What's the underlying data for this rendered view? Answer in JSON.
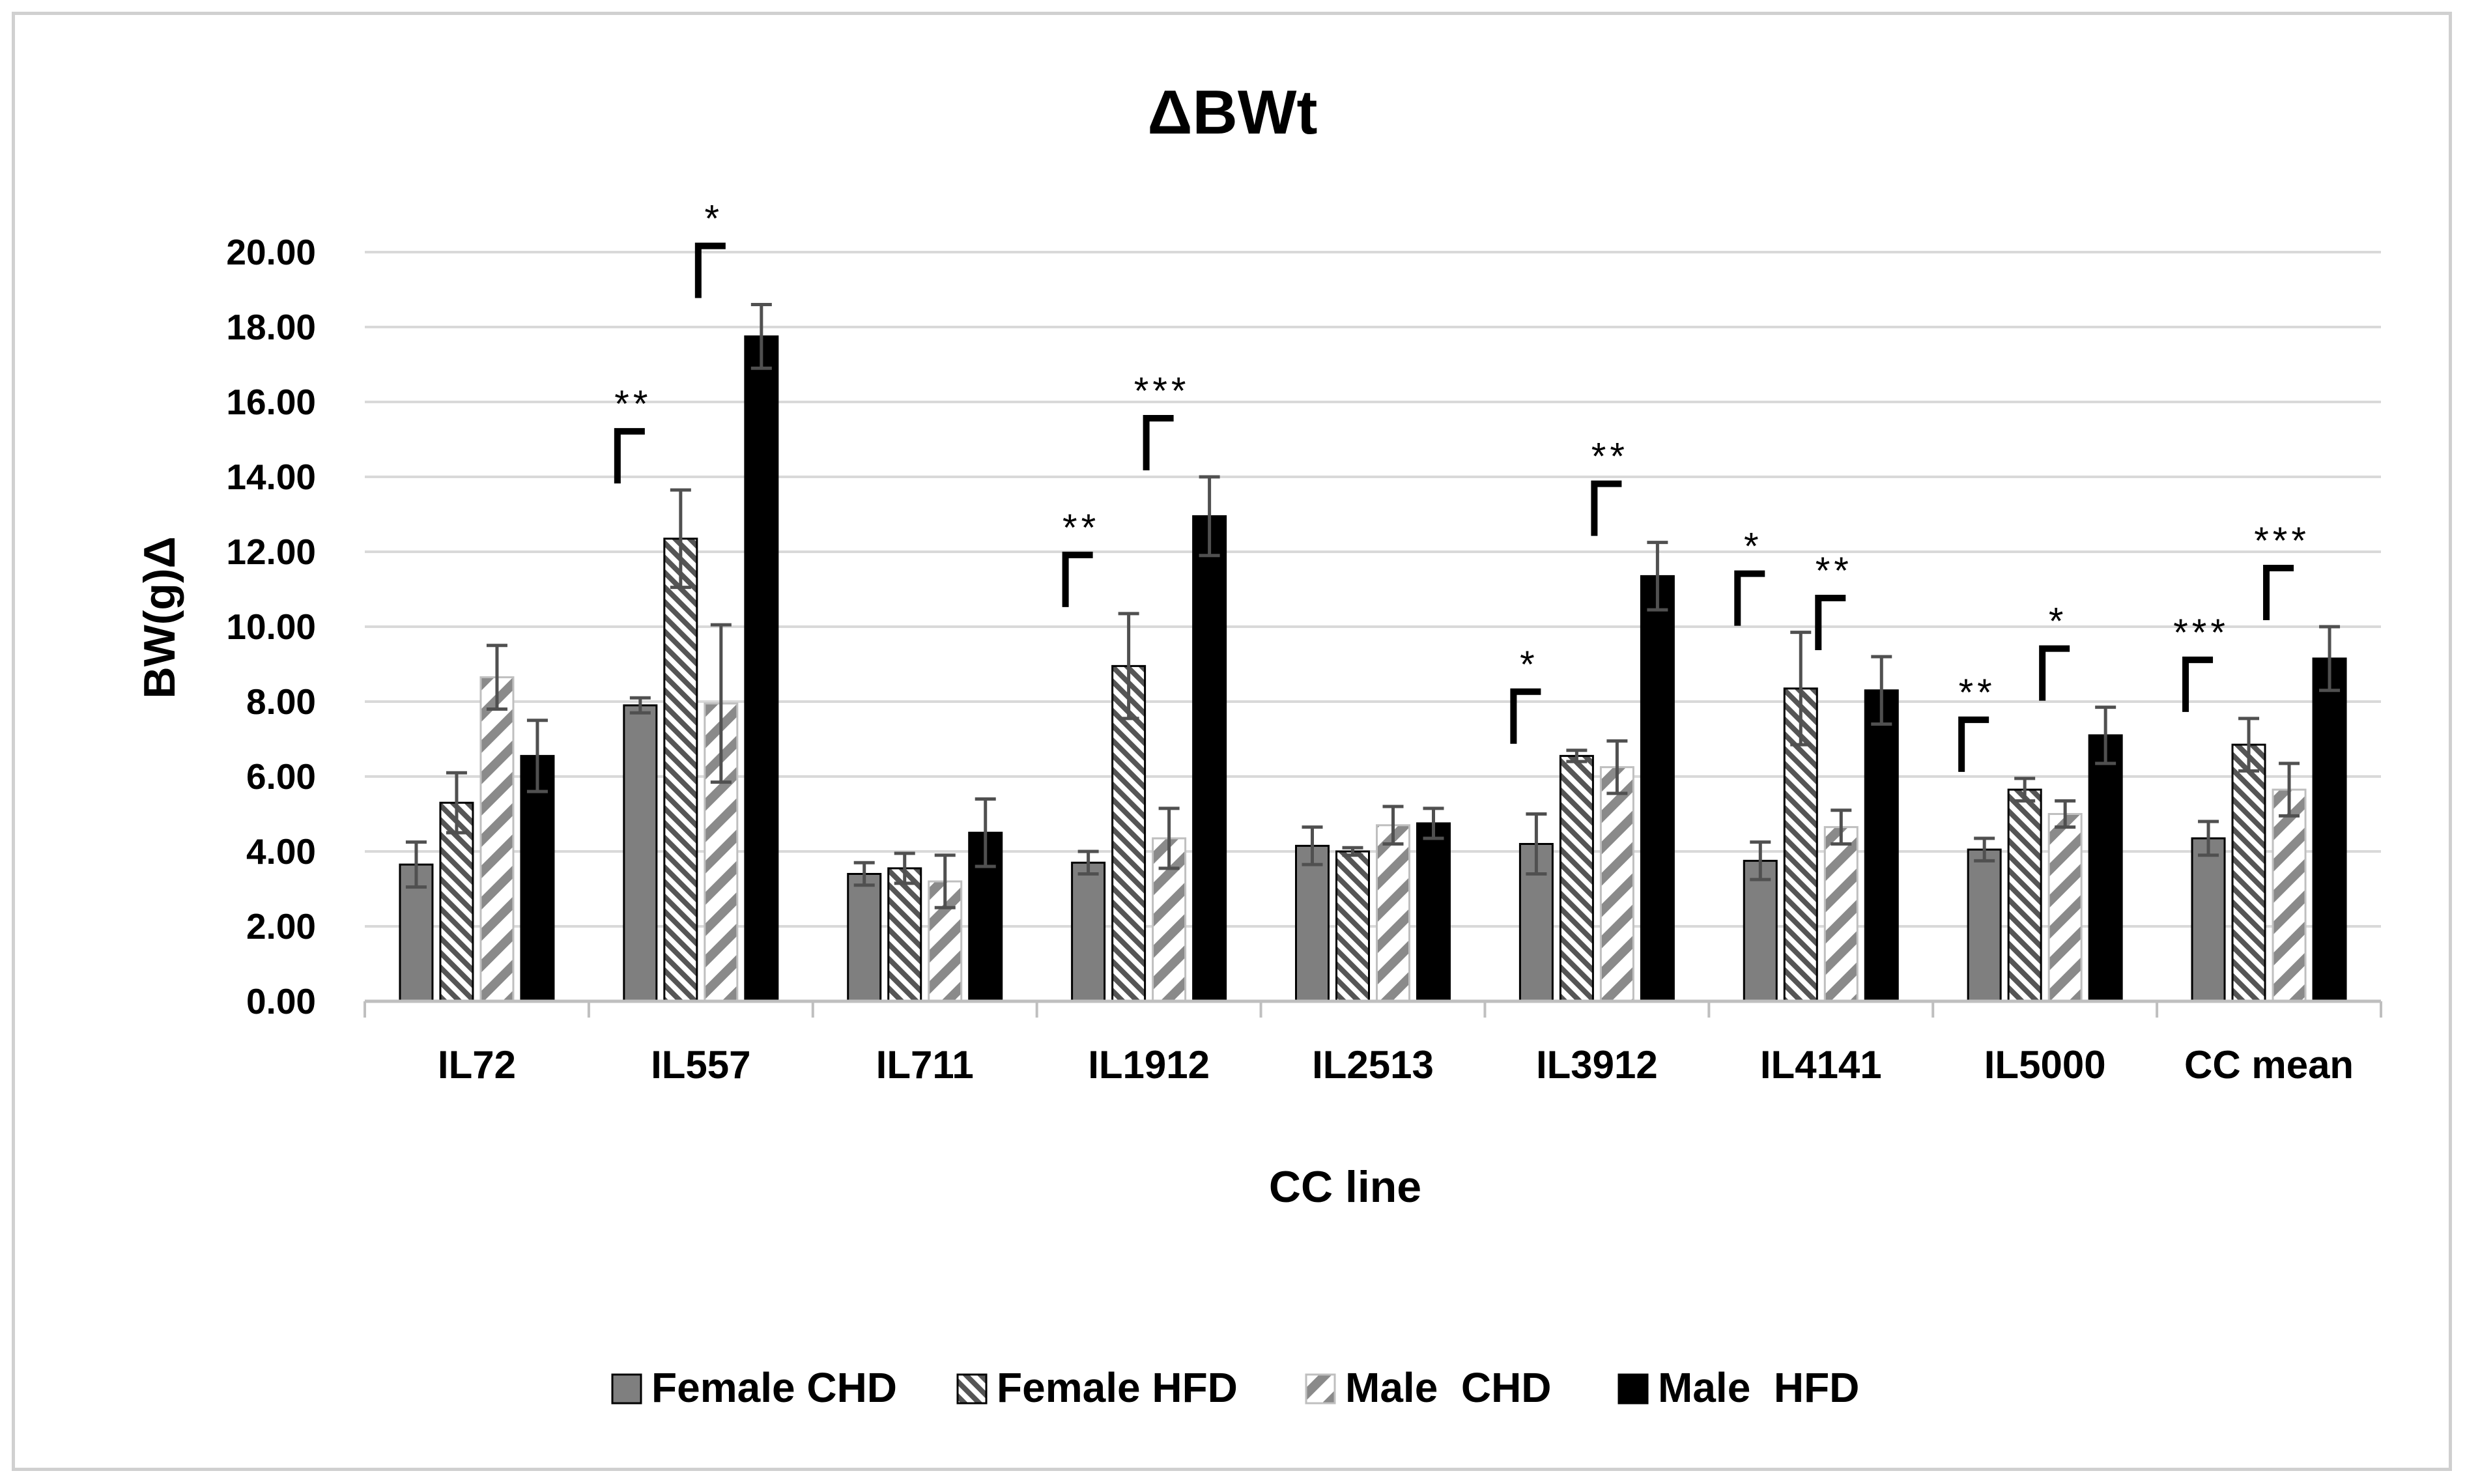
{
  "chart_data": {
    "type": "bar",
    "title": "ΔBWt",
    "xlabel": "CC line",
    "ylabel": "BW(g)Δ",
    "ylim": [
      0,
      20
    ],
    "yticks": [
      "0.00",
      "2.00",
      "4.00",
      "6.00",
      "8.00",
      "10.00",
      "12.00",
      "14.00",
      "16.00",
      "18.00",
      "20.00"
    ],
    "grid": true,
    "legend_position": "bottom",
    "categories": [
      "IL72",
      "IL557",
      "IL711",
      "IL1912",
      "IL2513",
      "IL3912",
      "IL4141",
      "IL5000",
      "CC mean"
    ],
    "series": [
      {
        "name": "Female CHD",
        "color": "#7f7f7f",
        "pattern": "solid-gray",
        "values": [
          3.65,
          7.9,
          3.4,
          3.7,
          4.15,
          4.2,
          3.75,
          4.05,
          4.35
        ],
        "errors": [
          0.6,
          0.2,
          0.3,
          0.3,
          0.5,
          0.8,
          0.5,
          0.3,
          0.45
        ]
      },
      {
        "name": "Female HFD",
        "color": "#595959",
        "pattern": "diagonal-dense",
        "values": [
          5.3,
          12.35,
          3.55,
          8.95,
          4.0,
          6.55,
          8.35,
          5.65,
          6.85
        ],
        "errors": [
          0.8,
          1.3,
          0.4,
          1.4,
          0.1,
          0.15,
          1.5,
          0.3,
          0.7
        ]
      },
      {
        "name": "Male  CHD",
        "color": "#808080",
        "pattern": "diagonal-wide",
        "values": [
          8.65,
          7.95,
          3.2,
          4.35,
          4.7,
          6.25,
          4.65,
          5.0,
          5.65
        ],
        "errors": [
          0.85,
          2.1,
          0.7,
          0.8,
          0.5,
          0.7,
          0.45,
          0.35,
          0.7
        ]
      },
      {
        "name": "Male  HFD",
        "color": "#000000",
        "pattern": "solid-black",
        "values": [
          6.55,
          17.75,
          4.5,
          12.95,
          4.75,
          11.35,
          8.3,
          7.1,
          9.15
        ],
        "errors": [
          0.95,
          0.85,
          0.9,
          1.05,
          0.4,
          0.9,
          0.9,
          0.75,
          0.85
        ]
      }
    ],
    "annotations": [
      {
        "category": "IL557",
        "pair": "female",
        "text": "**"
      },
      {
        "category": "IL557",
        "pair": "male",
        "text": "*"
      },
      {
        "category": "IL1912",
        "pair": "female",
        "text": "**"
      },
      {
        "category": "IL1912",
        "pair": "male",
        "text": "***"
      },
      {
        "category": "IL3912",
        "pair": "female",
        "text": "*"
      },
      {
        "category": "IL3912",
        "pair": "male",
        "text": "**"
      },
      {
        "category": "IL4141",
        "pair": "female",
        "text": "*"
      },
      {
        "category": "IL4141",
        "pair": "male",
        "text": "**"
      },
      {
        "category": "IL5000",
        "pair": "female",
        "text": "**"
      },
      {
        "category": "IL5000",
        "pair": "male",
        "text": "*"
      },
      {
        "category": "CC mean",
        "pair": "female",
        "text": "***"
      },
      {
        "category": "CC mean",
        "pair": "male",
        "text": "***"
      }
    ]
  }
}
